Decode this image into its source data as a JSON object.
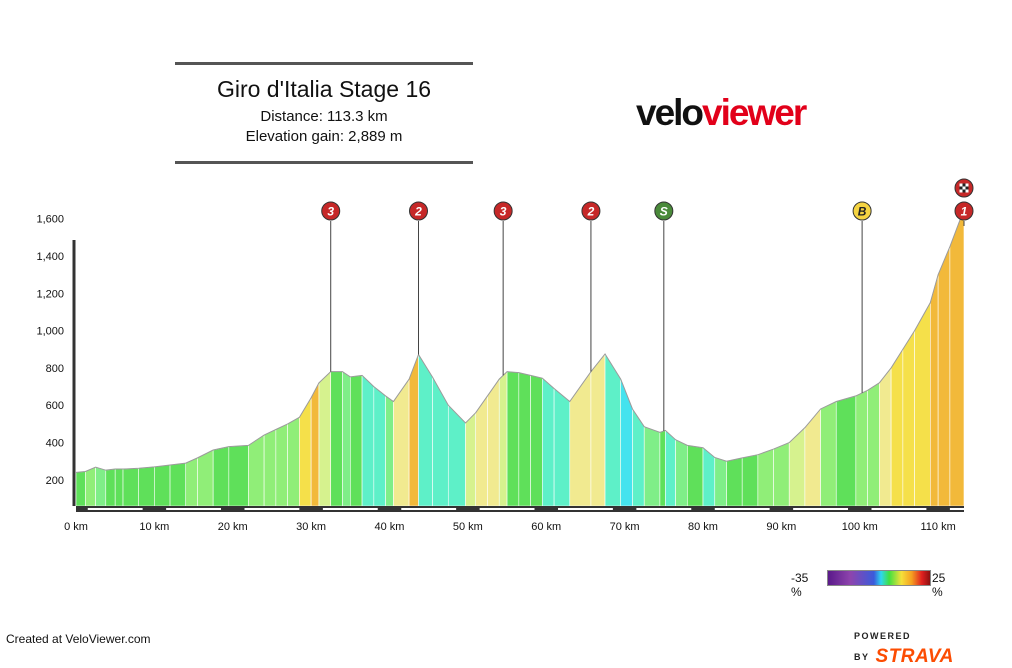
{
  "header": {
    "title": "Giro d'Italia Stage 16",
    "distance": "Distance: 113.3 km",
    "elevation_gain": "Elevation gain: 2,889 m"
  },
  "logo": {
    "part1": "velo",
    "part2": "viewer"
  },
  "footer": {
    "created": "Created at VeloViewer.com",
    "powered_by": "POWERED BY",
    "strava": "STRAVA"
  },
  "gradient_scale": {
    "min": "-35 %",
    "max": "25 %"
  },
  "colors": {
    "climb_red": "#c62828",
    "sprint_green": "#4a8a3a",
    "bonus_yellow": "#f5d442",
    "axis": "#333333"
  },
  "chart_data": {
    "type": "area",
    "xlabel": "",
    "ylabel": "",
    "xlim": [
      0,
      113.3
    ],
    "ylim": [
      60,
      1700
    ],
    "y_ticks": [
      200,
      400,
      600,
      800,
      1000,
      1200,
      1400,
      1600
    ],
    "y_tick_labels": [
      "200",
      "400",
      "600",
      "800",
      "1,000",
      "1,200",
      "1,400",
      "1,600"
    ],
    "x_ticks": [
      0,
      10,
      20,
      30,
      40,
      50,
      60,
      70,
      80,
      90,
      100,
      110
    ],
    "x_tick_labels": [
      "0 km",
      "10 km",
      "20 km",
      "30 km",
      "40 km",
      "50 km",
      "60 km",
      "70 km",
      "80 km",
      "90 km",
      "100 km",
      "110 km"
    ],
    "series": [
      {
        "x": [
          0,
          1.2,
          2.5,
          3.8,
          5,
          6,
          8,
          10,
          12,
          14,
          15.5,
          17.5,
          19.5,
          22,
          24,
          25.5,
          27,
          28.5,
          30,
          31,
          32.5,
          34,
          35,
          36.5,
          38,
          39.5,
          40.5,
          42.5,
          43.7,
          45.5,
          47.5,
          49.7,
          51,
          52.5,
          54,
          55,
          56.5,
          58,
          59.5,
          61,
          63,
          65.7,
          67.5,
          69.5,
          71,
          72.5,
          74.5,
          75.2,
          76.5,
          78,
          80,
          81.5,
          83,
          85,
          87,
          89,
          91,
          93,
          95,
          97,
          99.5,
          101,
          102.5,
          104,
          105.5,
          107,
          109,
          110,
          111.5,
          113.3
        ],
        "y": [
          240,
          245,
          268,
          252,
          258,
          258,
          262,
          270,
          280,
          290,
          318,
          360,
          378,
          385,
          440,
          470,
          500,
          535,
          640,
          720,
          780,
          780,
          752,
          760,
          700,
          650,
          620,
          740,
          872,
          750,
          600,
          505,
          560,
          650,
          740,
          780,
          775,
          760,
          745,
          690,
          620,
          780,
          875,
          740,
          580,
          485,
          455,
          465,
          415,
          385,
          372,
          320,
          300,
          318,
          335,
          365,
          400,
          480,
          580,
          620,
          650,
          680,
          720,
          800,
          900,
          1000,
          1150,
          1300,
          1450,
          1650
        ]
      }
    ],
    "markers": [
      {
        "label": "3",
        "type": "climb",
        "km": 32.5
      },
      {
        "label": "2",
        "type": "climb",
        "km": 43.7
      },
      {
        "label": "3",
        "type": "climb",
        "km": 54.5
      },
      {
        "label": "2",
        "type": "climb",
        "km": 65.7
      },
      {
        "label": "S",
        "type": "sprint",
        "km": 75.0
      },
      {
        "label": "B",
        "type": "bonus",
        "km": 100.3
      },
      {
        "label": "1",
        "type": "climb",
        "km": 113.3
      }
    ],
    "grid": false
  }
}
